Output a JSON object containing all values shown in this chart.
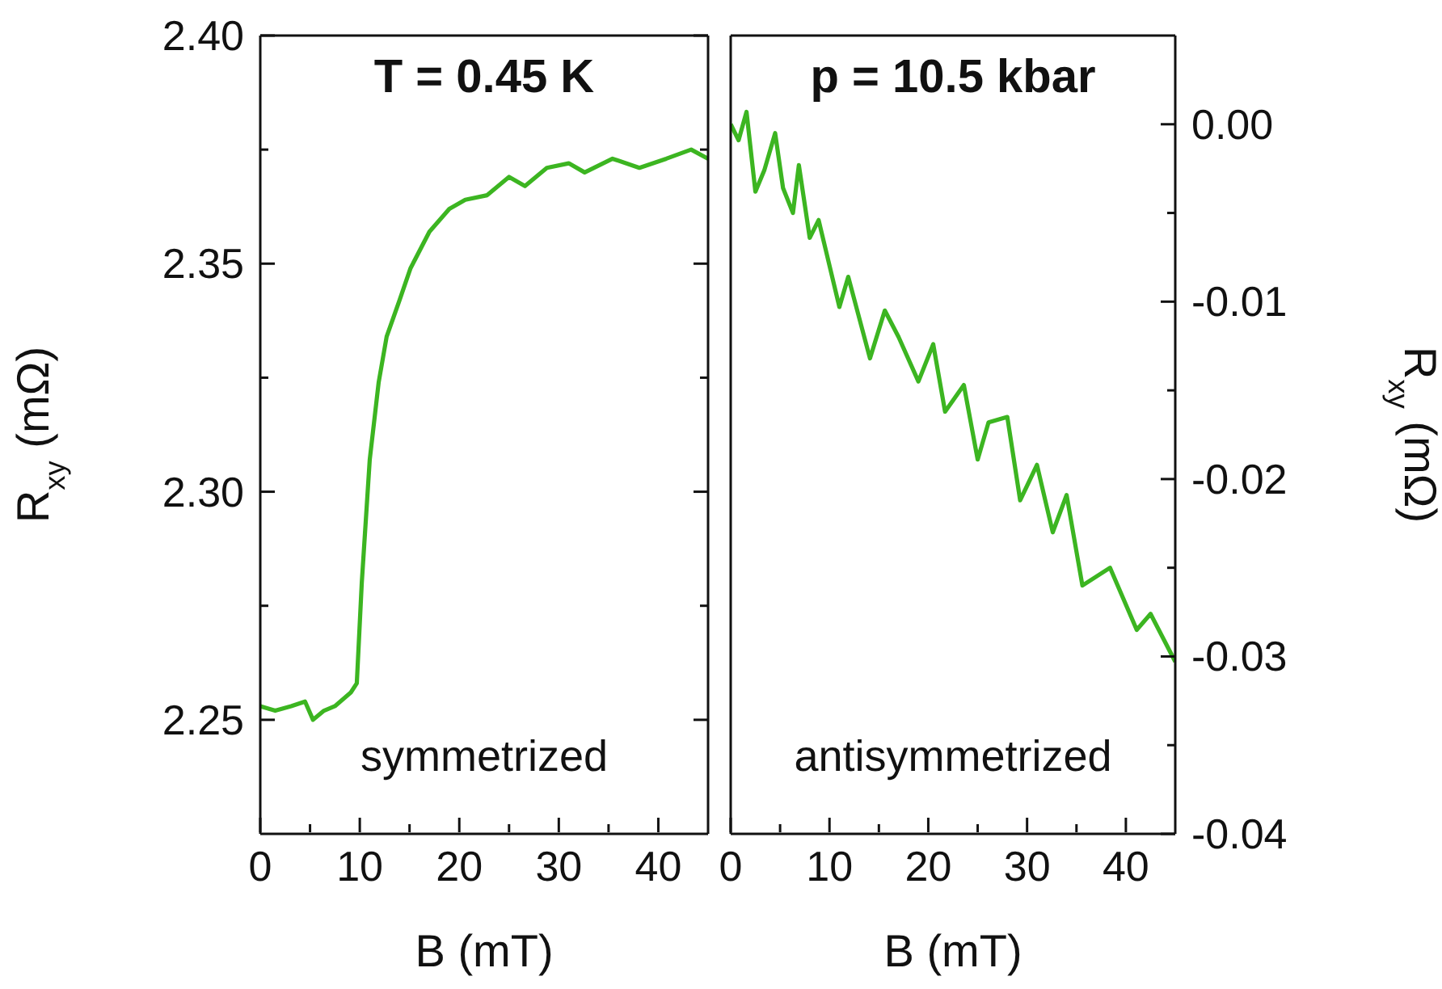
{
  "chart_data": [
    {
      "type": "line",
      "xlabel": "B (mT)",
      "ylabel": "R$_{xy}$ (mΩ)",
      "annotations": [
        "T = 0.45 K",
        "symmetrized"
      ],
      "xlim": [
        0,
        45
      ],
      "xticks": [
        0,
        {
          "value": 5,
          "label": null
        },
        10,
        {
          "value": 15,
          "label": null
        },
        20,
        {
          "value": 25,
          "label": null
        },
        30,
        {
          "value": 35,
          "label": null
        },
        40
      ],
      "ylim": [
        2.225,
        2.4
      ],
      "yticks": [
        2.25,
        {
          "value": 2.275,
          "label": null
        },
        {
          "value": 2.3,
          "label": "2.30"
        },
        {
          "value": 2.325,
          "label": null
        },
        2.35,
        {
          "value": 2.375,
          "label": null
        },
        {
          "value": 2.4,
          "label": "2.40"
        }
      ],
      "series": [
        {
          "color": "#3cb521",
          "x": [
            0,
            1.5,
            3.1,
            4.5,
            5.3,
            6.4,
            7.5,
            9.1,
            9.7,
            10.2,
            11.0,
            11.9,
            12.7,
            14.0,
            15.1,
            17.0,
            19.0,
            20.6,
            22.8,
            25.0,
            26.6,
            28.8,
            31.0,
            32.6,
            35.4,
            38.1,
            40.8,
            43.3,
            45
          ],
          "values": [
            2.253,
            2.252,
            2.253,
            2.254,
            2.25,
            2.252,
            2.253,
            2.256,
            2.258,
            2.28,
            2.307,
            2.324,
            2.334,
            2.342,
            2.349,
            2.357,
            2.362,
            2.364,
            2.365,
            2.369,
            2.367,
            2.371,
            2.372,
            2.37,
            2.373,
            2.371,
            2.373,
            2.375,
            2.373
          ]
        }
      ]
    },
    {
      "type": "line",
      "xlabel": "B (mT)",
      "y2label": "R$_{xy}$ (mΩ)",
      "annotations": [
        "p = 10.5 kbar",
        "antisymmetrized"
      ],
      "xlim": [
        0,
        45
      ],
      "xticks": [
        0,
        {
          "value": 5,
          "label": null
        },
        10,
        {
          "value": 15,
          "label": null
        },
        20,
        {
          "value": 25,
          "label": null
        },
        30,
        {
          "value": 35,
          "label": null
        },
        40
      ],
      "y2lim": [
        -0.04,
        0.005
      ],
      "y2ticks": [
        -0.04,
        {
          "value": -0.035,
          "label": null
        },
        -0.03,
        {
          "value": -0.025,
          "label": null
        },
        -0.02,
        {
          "value": -0.015,
          "label": null
        },
        -0.01,
        {
          "value": -0.005,
          "label": null
        },
        {
          "value": 0,
          "label": "0.00"
        }
      ],
      "series": [
        {
          "color": "#3cb521",
          "axis": "y2",
          "x": [
            0,
            0.8,
            1.6,
            2.5,
            3.4,
            4.5,
            5.3,
            6.3,
            6.9,
            8.0,
            8.9,
            11.0,
            11.9,
            14.1,
            15.6,
            17.0,
            19.0,
            20.5,
            21.7,
            23.6,
            25.0,
            26.1,
            28.0,
            29.3,
            31.0,
            32.6,
            34.0,
            35.6,
            38.4,
            41.1,
            42.5,
            45
          ],
          "values": [
            0,
            -0.0009,
            0.0007,
            -0.0038,
            -0.0026,
            -0.0005,
            -0.0036,
            -0.005,
            -0.0023,
            -0.0064,
            -0.0054,
            -0.0103,
            -0.0086,
            -0.0132,
            -0.0105,
            -0.012,
            -0.0145,
            -0.0124,
            -0.0162,
            -0.0147,
            -0.0189,
            -0.0168,
            -0.0165,
            -0.0212,
            -0.0192,
            -0.023,
            -0.0209,
            -0.026,
            -0.025,
            -0.0285,
            -0.0276,
            -0.0303
          ]
        }
      ]
    }
  ]
}
